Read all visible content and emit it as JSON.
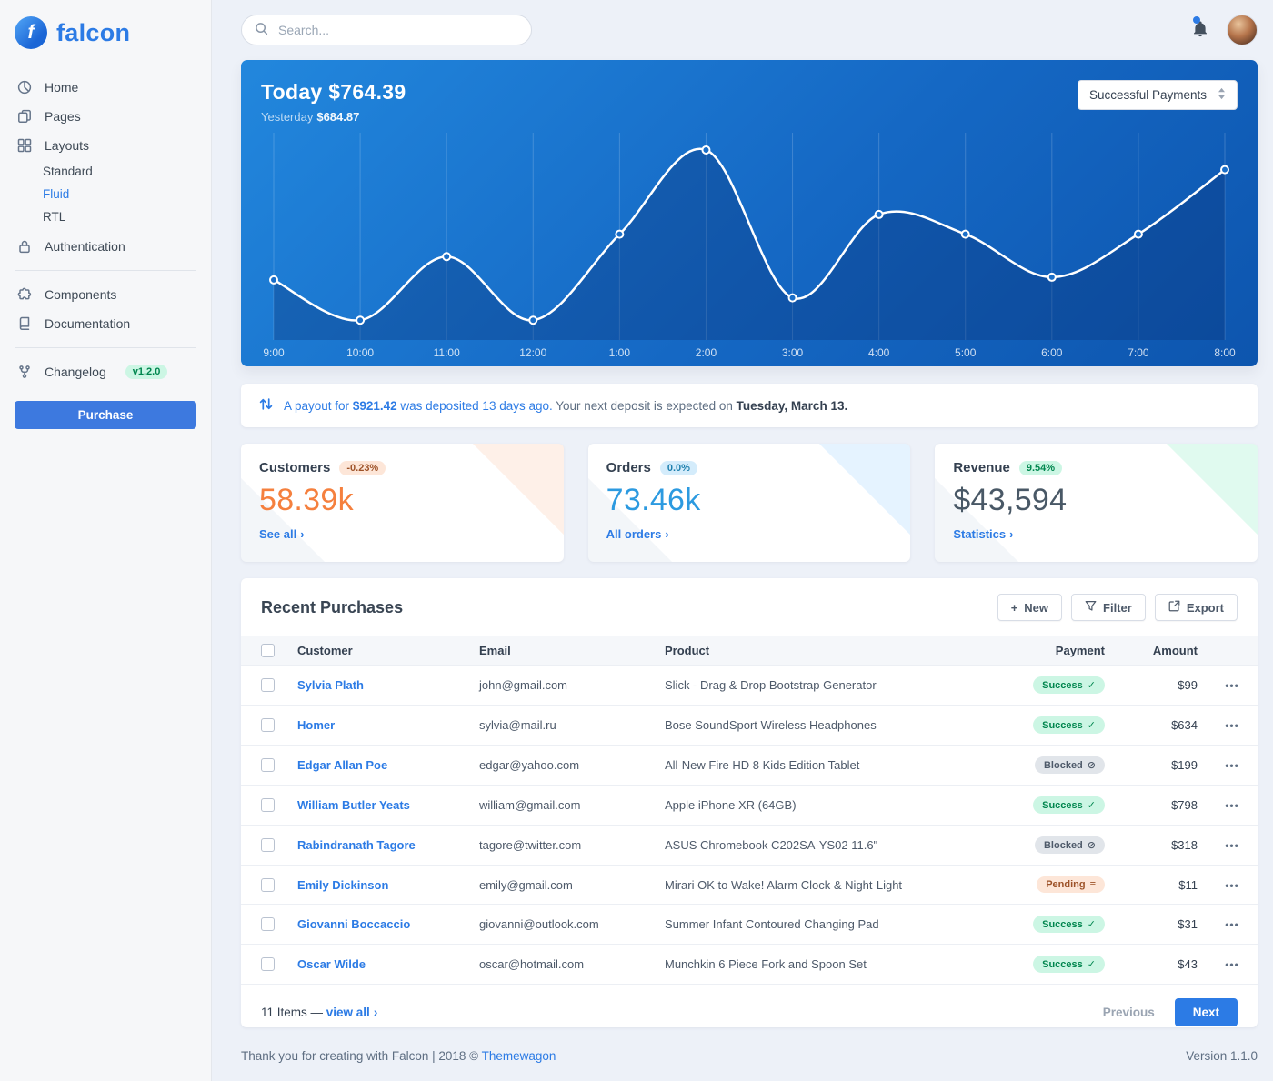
{
  "brand": {
    "name": "falcon"
  },
  "topbar": {
    "search_placeholder": "Search..."
  },
  "sidebar": {
    "items": [
      {
        "label": "Home"
      },
      {
        "label": "Pages"
      },
      {
        "label": "Layouts",
        "children": [
          "Standard",
          "Fluid",
          "RTL"
        ],
        "active_child": "Fluid"
      },
      {
        "label": "Authentication"
      },
      {
        "label": "Components"
      },
      {
        "label": "Documentation"
      },
      {
        "label": "Changelog",
        "badge": "v1.2.0"
      }
    ],
    "purchase_label": "Purchase"
  },
  "chart_card": {
    "title": "Today $764.39",
    "yesterday_label": "Yesterday",
    "yesterday_value": "$684.87",
    "select_value": "Successful Payments",
    "chart_data": {
      "type": "line",
      "x": [
        "9:00",
        "10:00",
        "11:00",
        "12:00",
        "1:00",
        "2:00",
        "3:00",
        "4:00",
        "5:00",
        "6:00",
        "7:00",
        "8:00"
      ],
      "series": [
        {
          "name": "Successful Payments",
          "values": [
            61,
            16,
            87,
            16,
            112,
            206,
            41,
            134,
            112,
            64,
            112,
            184
          ]
        }
      ],
      "ylim": [
        0,
        210
      ],
      "grid": "vertical",
      "legend": "none",
      "line_color": "#ffffff"
    }
  },
  "payout_notice": {
    "link_before": "A payout for ",
    "amount": "$921.42",
    "link_after": " was deposited 13 days ago.",
    "middle": " Your next deposit is expected on ",
    "date": "Tuesday, March 13."
  },
  "stat_cards": [
    {
      "title": "Customers",
      "badge": "-0.23%",
      "value": "58.39k",
      "link": "See all",
      "accent": "#f5803e"
    },
    {
      "title": "Orders",
      "badge": "0.0%",
      "value": "73.46k",
      "link": "All orders",
      "accent": "#2c9ae0"
    },
    {
      "title": "Revenue",
      "badge": "9.54%",
      "value": "$43,594",
      "link": "Statistics",
      "accent": "#495866"
    }
  ],
  "purchases": {
    "title": "Recent Purchases",
    "new_label": "New",
    "filter_label": "Filter",
    "export_label": "Export",
    "columns": {
      "customer": "Customer",
      "email": "Email",
      "product": "Product",
      "payment": "Payment",
      "amount": "Amount"
    },
    "rows": [
      {
        "customer": "Sylvia Plath",
        "email": "john@gmail.com",
        "product": "Slick - Drag & Drop Bootstrap Generator",
        "payment": "Success",
        "status": "success",
        "amount": "$99"
      },
      {
        "customer": "Homer",
        "email": "sylvia@mail.ru",
        "product": "Bose SoundSport Wireless Headphones",
        "payment": "Success",
        "status": "success",
        "amount": "$634"
      },
      {
        "customer": "Edgar Allan Poe",
        "email": "edgar@yahoo.com",
        "product": "All-New Fire HD 8 Kids Edition Tablet",
        "payment": "Blocked",
        "status": "blocked",
        "amount": "$199"
      },
      {
        "customer": "William Butler Yeats",
        "email": "william@gmail.com",
        "product": "Apple iPhone XR (64GB)",
        "payment": "Success",
        "status": "success",
        "amount": "$798"
      },
      {
        "customer": "Rabindranath Tagore",
        "email": "tagore@twitter.com",
        "product": "ASUS Chromebook C202SA-YS02 11.6\"",
        "payment": "Blocked",
        "status": "blocked",
        "amount": "$318"
      },
      {
        "customer": "Emily Dickinson",
        "email": "emily@gmail.com",
        "product": "Mirari OK to Wake! Alarm Clock & Night-Light",
        "payment": "Pending",
        "status": "pending",
        "amount": "$11"
      },
      {
        "customer": "Giovanni Boccaccio",
        "email": "giovanni@outlook.com",
        "product": "Summer Infant Contoured Changing Pad",
        "payment": "Success",
        "status": "success",
        "amount": "$31"
      },
      {
        "customer": "Oscar Wilde",
        "email": "oscar@hotmail.com",
        "product": "Munchkin 6 Piece Fork and Spoon Set",
        "payment": "Success",
        "status": "success",
        "amount": "$43"
      }
    ],
    "footer": {
      "items_text": "11 Items — ",
      "view_all": "view all",
      "previous": "Previous",
      "next": "Next"
    }
  },
  "page_footer": {
    "text": "Thank you for creating with Falcon | 2018 © ",
    "link": "Themewagon",
    "version": "Version 1.1.0"
  }
}
